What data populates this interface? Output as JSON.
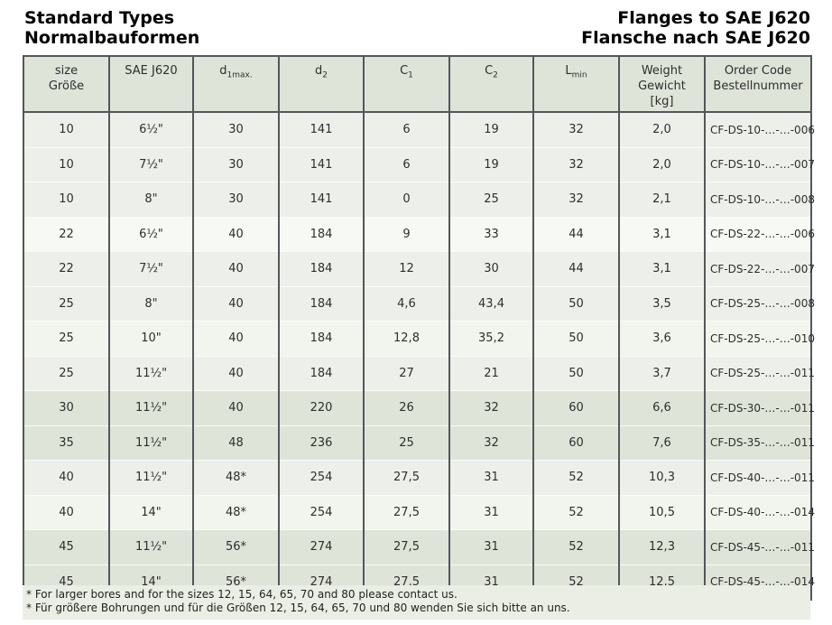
{
  "page": {
    "title_left": [
      "Standard Types",
      "Normalbauformen"
    ],
    "title_right": [
      "Flanges to SAE J620",
      "Flansche nach SAE J620"
    ]
  },
  "table": {
    "columns": [
      {
        "lines": [
          "size",
          "Größe"
        ]
      },
      {
        "lines": [
          "SAE J620"
        ]
      },
      {
        "main": "d",
        "sub": "1max."
      },
      {
        "main": "d",
        "sub": "2"
      },
      {
        "main": "C",
        "sub": "1"
      },
      {
        "main": "C",
        "sub": "2"
      },
      {
        "main": "L",
        "sub": "min"
      },
      {
        "lines": [
          "Weight",
          "Gewicht",
          "[kg]"
        ]
      },
      {
        "lines": [
          "Order Code",
          "Bestellnummer"
        ]
      }
    ],
    "rows": [
      [
        "10",
        "6½\"",
        "30",
        "141",
        "6",
        "19",
        "32",
        "2,0",
        "CF-DS-10-…-…-006"
      ],
      [
        "10",
        "7½\"",
        "30",
        "141",
        "6",
        "19",
        "32",
        "2,0",
        "CF-DS-10-…-…-007"
      ],
      [
        "10",
        "8\"",
        "30",
        "141",
        "0",
        "25",
        "32",
        "2,1",
        "CF-DS-10-…-…-008"
      ],
      [
        "22",
        "6½\"",
        "40",
        "184",
        "9",
        "33",
        "44",
        "3,1",
        "CF-DS-22-…-…-006"
      ],
      [
        "22",
        "7½\"",
        "40",
        "184",
        "12",
        "30",
        "44",
        "3,1",
        "CF-DS-22-…-…-007"
      ],
      [
        "25",
        "8\"",
        "40",
        "184",
        "4,6",
        "43,4",
        "50",
        "3,5",
        "CF-DS-25-…-…-008"
      ],
      [
        "25",
        "10\"",
        "40",
        "184",
        "12,8",
        "35,2",
        "50",
        "3,6",
        "CF-DS-25-…-…-010"
      ],
      [
        "25",
        "11½\"",
        "40",
        "184",
        "27",
        "21",
        "50",
        "3,7",
        "CF-DS-25-…-…-011"
      ],
      [
        "30",
        "11½\"",
        "40",
        "220",
        "26",
        "32",
        "60",
        "6,6",
        "CF-DS-30-…-…-011"
      ],
      [
        "35",
        "11½\"",
        "48",
        "236",
        "25",
        "32",
        "60",
        "7,6",
        "CF-DS-35-…-…-011"
      ],
      [
        "40",
        "11½\"",
        "48*",
        "254",
        "27,5",
        "31",
        "52",
        "10,3",
        "CF-DS-40-…-…-011"
      ],
      [
        "40",
        "14\"",
        "48*",
        "254",
        "27,5",
        "31",
        "52",
        "10,5",
        "CF-DS-40-…-…-014"
      ],
      [
        "45",
        "11½\"",
        "56*",
        "274",
        "27,5",
        "31",
        "52",
        "12,3",
        "CF-DS-45-…-…-011"
      ],
      [
        "45",
        "14\"",
        "56*",
        "274",
        "27,5",
        "31",
        "52",
        "12,5",
        "CF-DS-45-…-…-014"
      ]
    ]
  },
  "footnotes": [
    "* For larger bores and for the sizes 12, 15, 64, 65, 70 and 80 please contact us.",
    "* Für größere Bohrungen und für die Größen 12, 15, 64, 65, 70 und 80 wenden Sie sich bitte an uns."
  ],
  "colors": {
    "header_bg": "#dfe4d9",
    "row_dark_bg": "#dfe4d9",
    "row_light_bg": "#edf0ea",
    "row_white_bg": "#f7f9f4",
    "footnote_bg": "#eaeee5",
    "border": "#54565a",
    "text": "#2e2e2e"
  }
}
